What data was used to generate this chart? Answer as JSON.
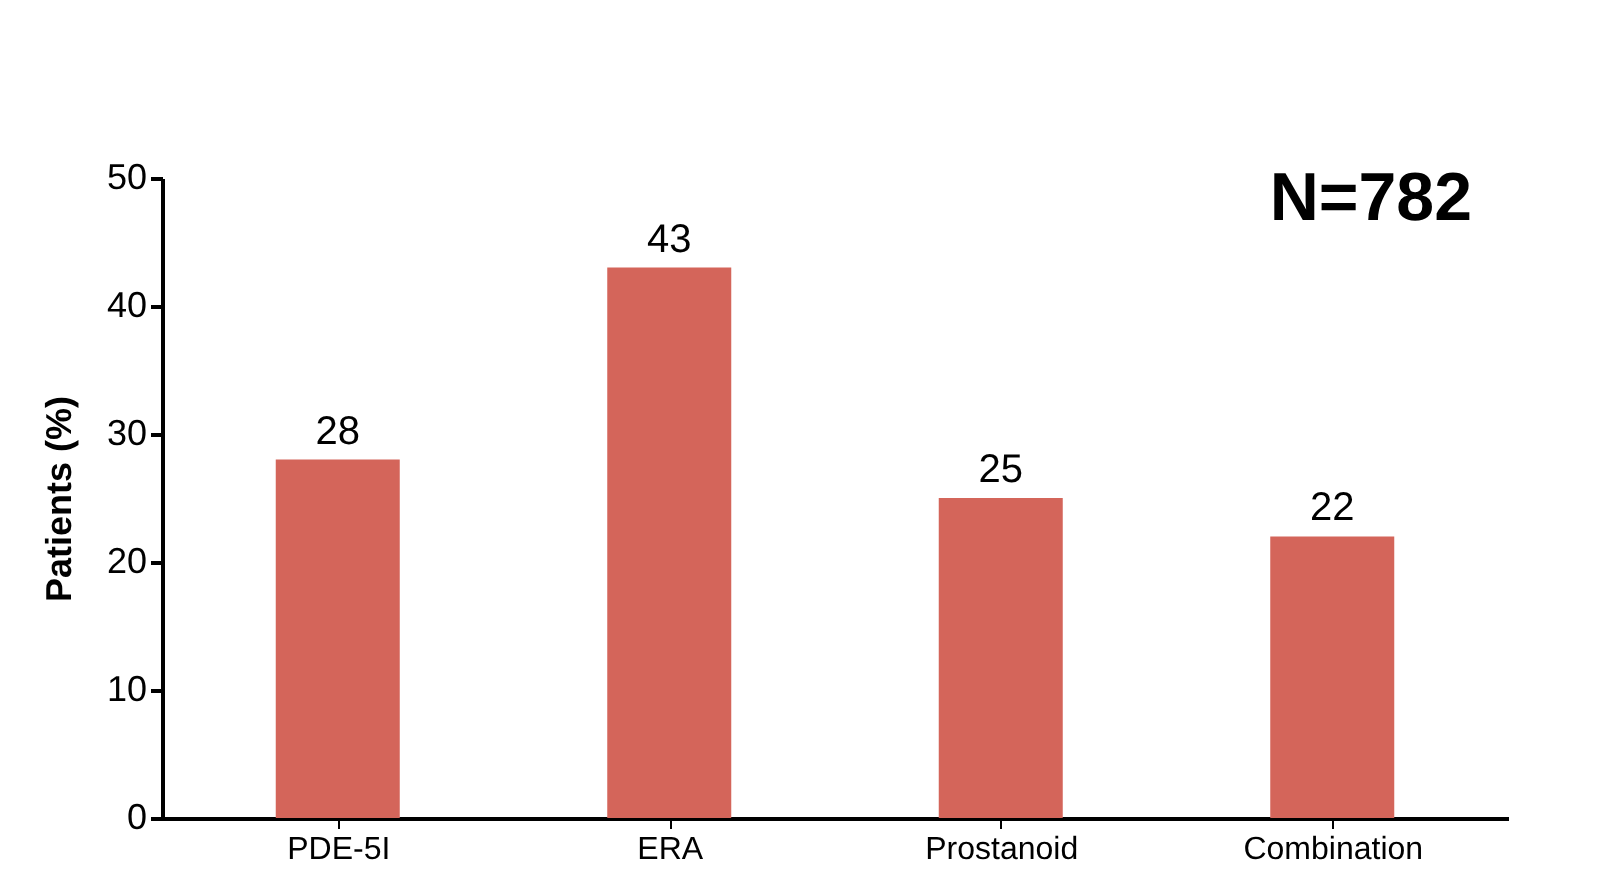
{
  "chart_data": {
    "type": "bar",
    "ylabel": "Patients (%)",
    "categories": [
      "PDE-5I",
      "ERA",
      "Prostanoid",
      "Combination"
    ],
    "values": [
      28,
      43,
      25,
      22
    ],
    "color": "#d4655a",
    "ylim": [
      0,
      50
    ],
    "yticks": [
      0,
      10,
      20,
      30,
      40,
      50
    ],
    "grid": false,
    "data_labels": true,
    "annotations": [
      "N=782"
    ]
  }
}
